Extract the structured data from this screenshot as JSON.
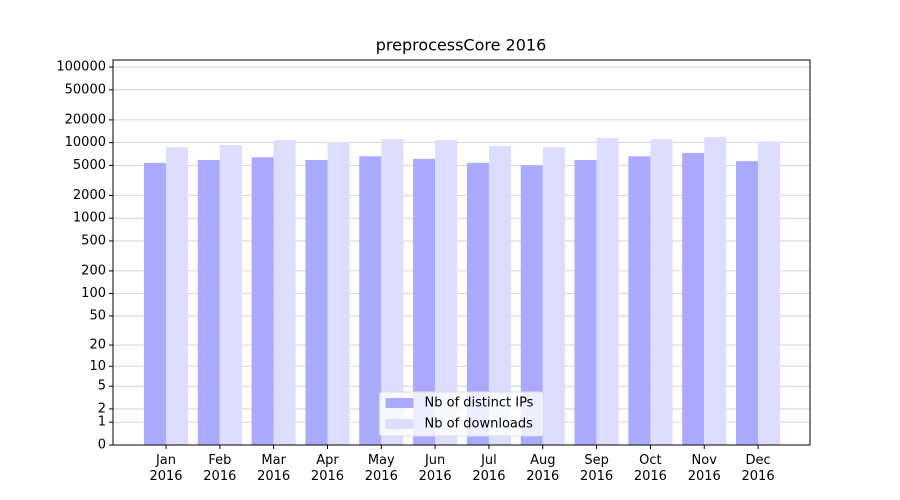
{
  "chart_data": {
    "type": "bar",
    "title": "preprocessCore 2016",
    "categories": [
      "Jan\n2016",
      "Feb\n2016",
      "Mar\n2016",
      "Apr\n2016",
      "May\n2016",
      "Jun\n2016",
      "Jul\n2016",
      "Aug\n2016",
      "Sep\n2016",
      "Oct\n2016",
      "Nov\n2016",
      "Dec\n2016"
    ],
    "series": [
      {
        "name": "Nb of distinct IPs",
        "color": "#aaaaff",
        "values": [
          5400,
          5900,
          6400,
          5900,
          6600,
          6100,
          5400,
          5000,
          5900,
          6600,
          7300,
          5700
        ]
      },
      {
        "name": "Nb of downloads",
        "color": "#ddddff",
        "values": [
          8700,
          9300,
          10800,
          10200,
          11100,
          10800,
          9000,
          8700,
          11500,
          11100,
          11900,
          10400
        ]
      }
    ],
    "yscale": "symlog",
    "ylim": [
      0,
      124000
    ],
    "yticks": [
      0,
      1,
      2,
      5,
      10,
      20,
      50,
      100,
      200,
      500,
      1000,
      2000,
      5000,
      10000,
      20000,
      50000,
      100000
    ],
    "grid": true,
    "legend": "lower center"
  }
}
